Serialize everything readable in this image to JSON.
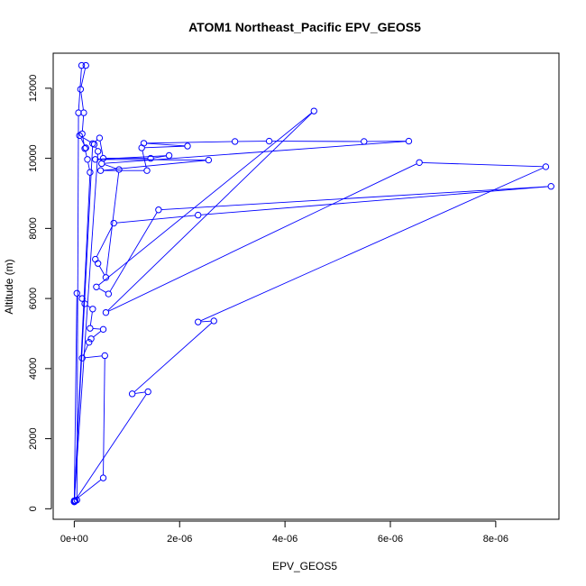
{
  "chart_data": {
    "type": "scatter",
    "title": "ATOM1 Northeast_Pacific EPV_GEOS5",
    "xlabel": "EPV_GEOS5",
    "ylabel": "Altitude (m)",
    "xlim": [
      -4e-07,
      9.2e-06
    ],
    "ylim": [
      -300,
      13000
    ],
    "x_ticks": [
      0,
      2e-06,
      4e-06,
      6e-06,
      8e-06
    ],
    "x_tick_labels": [
      "0e+00",
      "2e-06",
      "4e-06",
      "6e-06",
      "8e-06"
    ],
    "y_ticks": [
      0,
      2000,
      4000,
      6000,
      8000,
      10000,
      12000
    ],
    "y_tick_labels": [
      "0",
      "2000",
      "4000",
      "6000",
      "8000",
      "10000",
      "12000"
    ],
    "grid": false,
    "style": "connected points with open circle markers",
    "series": [
      {
        "color": "#0000ff",
        "points": [
          [
            0.0,
            200
          ],
          [
            2e-08,
            230
          ],
          [
            5e-08,
            250
          ],
          [
            8e-08,
            11300
          ],
          [
            1.4e-07,
            12650
          ],
          [
            2.2e-07,
            12650
          ],
          [
            1.2e-07,
            11970
          ],
          [
            1.8e-07,
            11300
          ],
          [
            1.5e-07,
            10700
          ],
          [
            2e-07,
            10280
          ],
          [
            2.5e-07,
            9970
          ],
          [
            3e-07,
            9600
          ],
          [
            0.0,
            200
          ],
          [
            3.5e-07,
            10420
          ],
          [
            4.8e-07,
            10580
          ],
          [
            5.5e-07,
            10000
          ],
          [
            1.45e-06,
            10000
          ],
          [
            1.8e-06,
            10080
          ],
          [
            4e-07,
            9970
          ],
          [
            2.55e-06,
            9950
          ],
          [
            5e-07,
            9650
          ],
          [
            1.38e-06,
            9650
          ],
          [
            1.28e-06,
            10300
          ],
          [
            2.15e-06,
            10350
          ],
          [
            1.32e-06,
            10430
          ],
          [
            3.05e-06,
            10480
          ],
          [
            3.7e-06,
            10490
          ],
          [
            5.5e-06,
            10480
          ],
          [
            6.35e-06,
            10490
          ],
          [
            5.2e-07,
            9850
          ],
          [
            8.5e-07,
            9680
          ],
          [
            6e-07,
            6600
          ],
          [
            4.5e-07,
            7000
          ],
          [
            4e-07,
            7120
          ],
          [
            7.5e-07,
            8150
          ],
          [
            2.35e-06,
            8380
          ],
          [
            9.05e-06,
            9200
          ],
          [
            1.6e-06,
            8530
          ],
          [
            6.5e-07,
            6130
          ],
          [
            4.2e-07,
            6330
          ],
          [
            4.55e-06,
            11350
          ],
          [
            6e-07,
            5600
          ],
          [
            6.55e-06,
            9880
          ],
          [
            8.95e-06,
            9760
          ],
          [
            2.35e-06,
            5330
          ],
          [
            2.65e-06,
            5360
          ],
          [
            1.1e-06,
            3280
          ],
          [
            1.4e-06,
            3340
          ],
          [
            0.0,
            200
          ],
          [
            5e-08,
            6150
          ],
          [
            1.5e-07,
            6000
          ],
          [
            2e-07,
            5850
          ],
          [
            3.5e-07,
            5700
          ],
          [
            3e-07,
            5150
          ],
          [
            5.5e-07,
            5120
          ],
          [
            3.2e-07,
            4850
          ],
          [
            2.8e-07,
            4750
          ],
          [
            1.5e-07,
            4300
          ],
          [
            5.8e-07,
            4370
          ],
          [
            5.5e-07,
            880
          ],
          [
            0.0,
            230
          ],
          [
            4.5e-07,
            10200
          ],
          [
            3.8e-07,
            10400
          ],
          [
            1e-07,
            10650
          ],
          [
            2.2e-07,
            10300
          ]
        ]
      }
    ]
  }
}
